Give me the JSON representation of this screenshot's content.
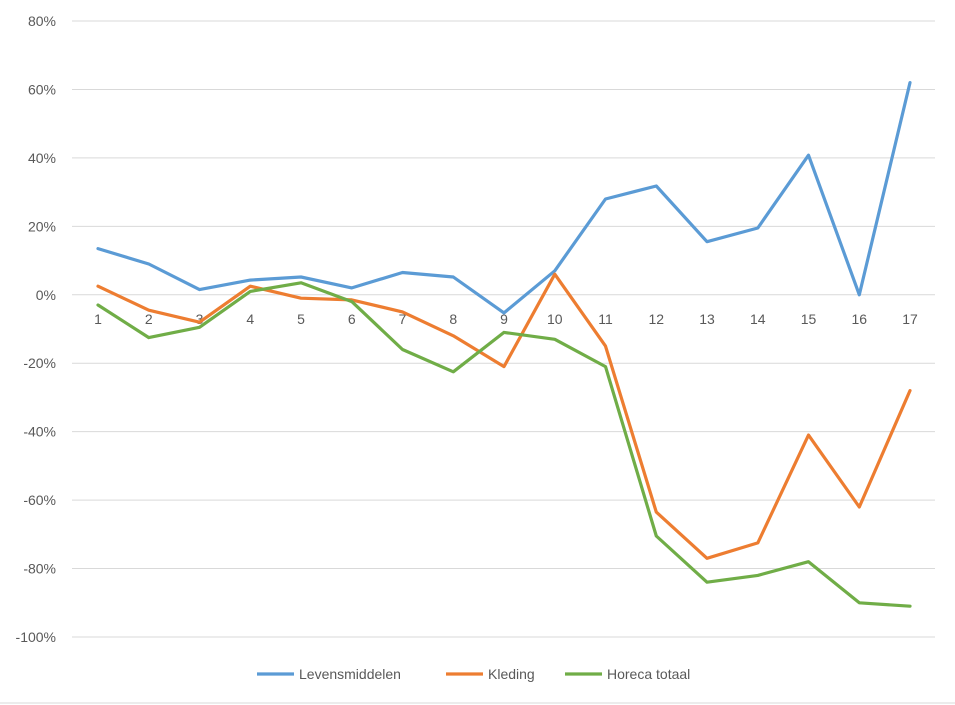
{
  "chart_data": {
    "type": "line",
    "title": "",
    "xlabel": "",
    "ylabel": "",
    "x": [
      1,
      2,
      3,
      4,
      5,
      6,
      7,
      8,
      9,
      10,
      11,
      12,
      13,
      14,
      15,
      16,
      17
    ],
    "x_tick_labels": [
      "1",
      "2",
      "3",
      "4",
      "5",
      "6",
      "7",
      "8",
      "9",
      "10",
      "11",
      "12",
      "13",
      "14",
      "15",
      "16",
      "17"
    ],
    "ylim": [
      -100,
      80
    ],
    "y_ticks": [
      80,
      60,
      40,
      20,
      0,
      -20,
      -40,
      -60,
      -80,
      -100
    ],
    "y_tick_labels": [
      "80%",
      "60%",
      "40%",
      "20%",
      "0%",
      "-20%",
      "-40%",
      "-60%",
      "-80%",
      "-100%"
    ],
    "grid": true,
    "legend_position": "bottom",
    "series": [
      {
        "name": "Levensmiddelen",
        "color": "#5B9BD5",
        "values": [
          13.5,
          9,
          1.5,
          4.3,
          5.2,
          2,
          6.5,
          5.2,
          -5.3,
          7,
          28,
          31.8,
          15.5,
          19.5,
          40.8,
          0,
          62
        ]
      },
      {
        "name": "Kleding",
        "color": "#ED7D31",
        "values": [
          2.5,
          -4.5,
          -8,
          2.5,
          -1,
          -1.5,
          -5,
          -12,
          -21,
          6,
          -15,
          -63.5,
          -77,
          -72.5,
          -41,
          -62,
          -28
        ]
      },
      {
        "name": "Horeca totaal",
        "color": "#70AD47",
        "values": [
          -3,
          -12.5,
          -9.5,
          1,
          3.5,
          -2,
          -16,
          -22.5,
          -11,
          -13,
          -21,
          -70.5,
          -84,
          -82,
          -78,
          -90,
          -91
        ]
      }
    ]
  }
}
